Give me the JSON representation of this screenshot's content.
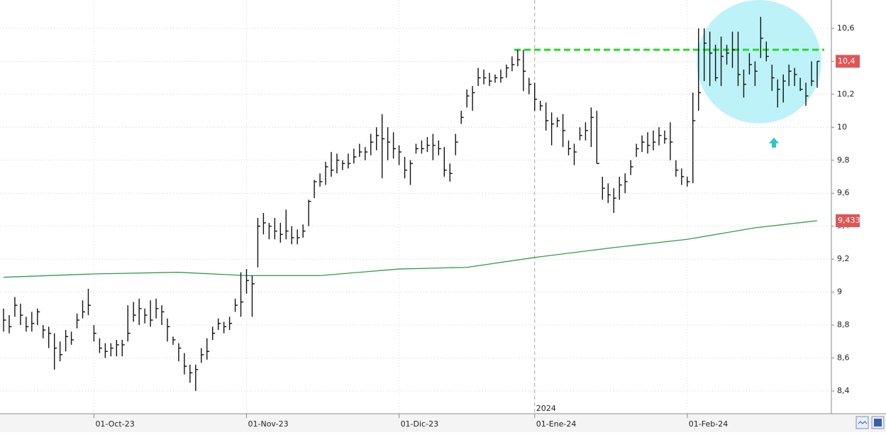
{
  "chart_data": {
    "type": "ohlc",
    "categories": [
      null,
      null,
      null,
      null,
      null,
      null,
      null,
      null,
      null,
      null,
      null,
      null,
      null,
      null,
      null,
      null,
      "01-Oct-23",
      null,
      null,
      null,
      null,
      null,
      null,
      null,
      null,
      null,
      null,
      null,
      null,
      null,
      null,
      null,
      null,
      null,
      null,
      null,
      null,
      null,
      null,
      null,
      null,
      null,
      null,
      "01-Nov-23",
      null,
      null,
      null,
      null,
      null,
      null,
      null,
      null,
      null,
      null,
      null,
      null,
      null,
      null,
      null,
      null,
      null,
      null,
      null,
      null,
      null,
      null,
      null,
      null,
      null,
      null,
      "01-Dic-23",
      null,
      null,
      null,
      null,
      null,
      null,
      null,
      null,
      null,
      null,
      null,
      null,
      null,
      null,
      null,
      null,
      null,
      null,
      null,
      null,
      null,
      null,
      null,
      "01-Ene-24",
      null,
      null,
      null,
      null,
      null,
      null,
      null,
      null,
      null,
      null,
      null,
      null,
      null,
      null,
      null,
      null,
      null,
      null,
      null,
      null,
      null,
      null,
      null,
      null,
      null,
      null,
      "01-Feb-24",
      null,
      null,
      null,
      null,
      null,
      null,
      null,
      null,
      null,
      null,
      null,
      null,
      null,
      null,
      null,
      null,
      null,
      null,
      null,
      null,
      null,
      null,
      null
    ],
    "year_label": "2024",
    "high": [
      8.9,
      8.86,
      8.97,
      8.93,
      8.85,
      8.88,
      8.9,
      8.8,
      8.79,
      8.75,
      8.7,
      8.77,
      8.76,
      8.87,
      8.95,
      9.02,
      8.8,
      8.72,
      8.69,
      8.69,
      8.71,
      8.71,
      8.92,
      8.94,
      8.96,
      8.9,
      8.95,
      8.96,
      8.92,
      8.84,
      8.73,
      8.69,
      8.63,
      8.56,
      8.56,
      8.66,
      8.72,
      8.79,
      8.84,
      8.82,
      8.85,
      8.96,
      9.12,
      9.14,
      9.1,
      9.45,
      9.48,
      9.42,
      9.45,
      9.42,
      9.5,
      9.4,
      9.38,
      9.41,
      9.56,
      9.68,
      9.72,
      9.79,
      9.85,
      9.84,
      9.8,
      9.84,
      9.87,
      9.9,
      9.88,
      9.96,
      10.0,
      10.08,
      10.0,
      9.97,
      9.89,
      9.82,
      9.8,
      9.9,
      9.92,
      9.94,
      9.96,
      9.92,
      9.88,
      9.78,
      9.96,
      10.1,
      10.23,
      10.25,
      10.36,
      10.35,
      10.33,
      10.32,
      10.35,
      10.38,
      10.43,
      10.47,
      10.47,
      10.3,
      10.27,
      10.16,
      10.15,
      10.09,
      10.06,
      10.08,
      9.92,
      9.9,
      10.0,
      10.03,
      10.12,
      10.1,
      9.7,
      9.66,
      9.63,
      9.7,
      9.72,
      9.8,
      9.9,
      9.95,
      9.97,
      9.98,
      10.0,
      9.98,
      10.03,
      9.8,
      9.75,
      9.7,
      10.21,
      10.6,
      10.6,
      10.58,
      10.5,
      10.55,
      10.5,
      10.58,
      10.58,
      10.35,
      10.45,
      10.4,
      10.67,
      10.52,
      10.38,
      10.29,
      10.32,
      10.38,
      10.36,
      10.3,
      10.27,
      10.4,
      10.4
    ],
    "low": [
      8.76,
      8.75,
      8.85,
      8.8,
      8.76,
      8.76,
      8.8,
      8.72,
      8.66,
      8.53,
      8.58,
      8.64,
      8.68,
      8.78,
      8.84,
      8.86,
      8.7,
      8.63,
      8.6,
      8.61,
      8.61,
      8.61,
      8.7,
      8.82,
      8.8,
      8.81,
      8.79,
      8.84,
      8.8,
      8.7,
      8.68,
      8.58,
      8.5,
      8.45,
      8.4,
      8.57,
      8.59,
      8.71,
      8.77,
      8.75,
      8.77,
      8.88,
      8.85,
      8.99,
      8.85,
      9.15,
      9.35,
      9.32,
      9.32,
      9.3,
      9.32,
      9.29,
      9.29,
      9.33,
      9.4,
      9.57,
      9.64,
      9.65,
      9.7,
      9.72,
      9.74,
      9.75,
      9.78,
      9.82,
      9.8,
      9.83,
      9.86,
      9.69,
      9.8,
      9.81,
      9.77,
      9.69,
      9.65,
      9.84,
      9.84,
      9.85,
      9.8,
      9.83,
      9.7,
      9.67,
      9.83,
      10.02,
      10.12,
      10.1,
      10.25,
      10.26,
      10.25,
      10.27,
      10.27,
      10.3,
      10.34,
      10.37,
      10.22,
      10.2,
      10.1,
      10.1,
      9.98,
      9.89,
      10.0,
      9.88,
      9.83,
      9.77,
      9.92,
      9.92,
      9.88,
      9.78,
      9.56,
      9.54,
      9.48,
      9.56,
      9.6,
      9.71,
      9.82,
      9.85,
      9.84,
      9.86,
      9.89,
      9.9,
      9.8,
      9.7,
      9.65,
      9.64,
      9.66,
      10.1,
      10.28,
      10.25,
      10.28,
      10.25,
      10.38,
      10.36,
      10.25,
      10.18,
      10.32,
      10.25,
      10.42,
      10.4,
      10.22,
      10.12,
      10.15,
      10.25,
      10.25,
      10.22,
      10.13,
      10.25,
      10.24
    ],
    "close": [
      8.83,
      8.79,
      8.92,
      8.86,
      8.79,
      8.81,
      8.88,
      8.77,
      8.75,
      8.66,
      8.62,
      8.73,
      8.71,
      8.83,
      8.88,
      8.92,
      8.75,
      8.66,
      8.64,
      8.66,
      8.68,
      8.68,
      8.75,
      8.86,
      8.9,
      8.86,
      8.83,
      8.9,
      8.88,
      8.79,
      8.71,
      8.66,
      8.55,
      8.51,
      8.53,
      8.62,
      8.64,
      8.75,
      8.81,
      8.79,
      8.81,
      8.92,
      8.94,
      9.07,
      9.05,
      9.4,
      9.42,
      9.4,
      9.37,
      9.35,
      9.37,
      9.33,
      9.33,
      9.37,
      9.55,
      9.67,
      9.67,
      9.76,
      9.74,
      9.8,
      9.78,
      9.78,
      9.82,
      9.85,
      9.85,
      9.91,
      9.95,
      9.93,
      9.91,
      9.87,
      9.85,
      9.74,
      9.78,
      9.87,
      9.87,
      9.89,
      9.89,
      9.87,
      9.74,
      9.72,
      9.91,
      10.06,
      10.19,
      10.21,
      10.3,
      10.3,
      10.28,
      10.3,
      10.3,
      10.36,
      10.38,
      10.41,
      10.34,
      10.26,
      10.17,
      10.13,
      10.04,
      10.02,
      10.04,
      9.98,
      9.87,
      9.85,
      9.95,
      9.98,
      10.06,
      9.78,
      9.63,
      9.59,
      9.57,
      9.65,
      9.67,
      9.76,
      9.87,
      9.91,
      9.89,
      9.91,
      9.95,
      9.93,
      9.91,
      9.74,
      9.7,
      9.67,
      10.04,
      10.21,
      10.51,
      10.45,
      10.3,
      10.43,
      10.45,
      10.47,
      10.32,
      10.26,
      10.38,
      10.34,
      10.54,
      10.43,
      10.3,
      10.23,
      10.28,
      10.34,
      10.32,
      10.23,
      10.19,
      10.28,
      10.4
    ],
    "bar_color": "#111111",
    "moving_average": {
      "color": "#2e9e4f",
      "x": [
        0,
        16,
        31,
        43,
        56,
        70,
        82,
        94,
        108,
        121,
        133,
        144
      ],
      "values": [
        9.09,
        9.11,
        9.12,
        9.1,
        9.1,
        9.14,
        9.15,
        9.21,
        9.27,
        9.32,
        9.39,
        9.433
      ]
    },
    "resistance": {
      "value": 10.47,
      "color": "#22dd22"
    },
    "last_price": {
      "value": 10.4,
      "label": "10,4"
    },
    "moving_average_last": {
      "value": 9.433,
      "label": "9,433"
    },
    "marker_color": "#e05555",
    "ylim": [
      8.262,
      10.772
    ],
    "yticks": [
      {
        "value": 8.4,
        "label": "8,4"
      },
      {
        "value": 8.6,
        "label": "8,6"
      },
      {
        "value": 8.8,
        "label": "8,8"
      },
      9,
      {
        "value": 9.2,
        "label": "9,2"
      },
      {
        "value": 9.4,
        "label": "9,4"
      },
      {
        "value": 9.6,
        "label": "9,6"
      },
      {
        "value": 9.8,
        "label": "9,8"
      },
      10,
      {
        "value": 10.2,
        "label": "10,2"
      },
      {
        "value": 10.4,
        "label": "10,4"
      },
      {
        "value": 10.6,
        "label": "10,6"
      }
    ],
    "grid": true
  }
}
